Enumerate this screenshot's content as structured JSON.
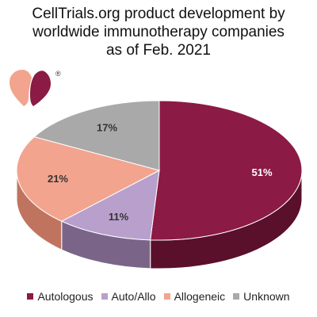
{
  "chart_data": {
    "type": "pie",
    "title_lines": [
      "CellTrials.org product development by",
      "worldwide immunotherapy companies",
      "as of Feb. 2021"
    ],
    "slices": [
      {
        "label": "Autologous",
        "value": 51,
        "value_label": "51%",
        "color": "#8b1a44",
        "side_color": "#5a0f2a"
      },
      {
        "label": "Auto/Allo",
        "value": 11,
        "value_label": "11%",
        "color": "#b9a0cc",
        "side_color": "#7a6589"
      },
      {
        "label": "Allogeneic",
        "value": 21,
        "value_label": "21%",
        "color": "#f2a48e",
        "side_color": "#c07460"
      },
      {
        "label": "Unknown",
        "value": 17,
        "value_label": "17%",
        "color": "#a9a9a9",
        "side_color": "#777777"
      }
    ],
    "legend_position": "bottom",
    "style": "3d"
  },
  "logo": {
    "name": "celltrials-logo",
    "mark": "®",
    "colors": [
      "#f2a48e",
      "#8b1a44"
    ]
  }
}
